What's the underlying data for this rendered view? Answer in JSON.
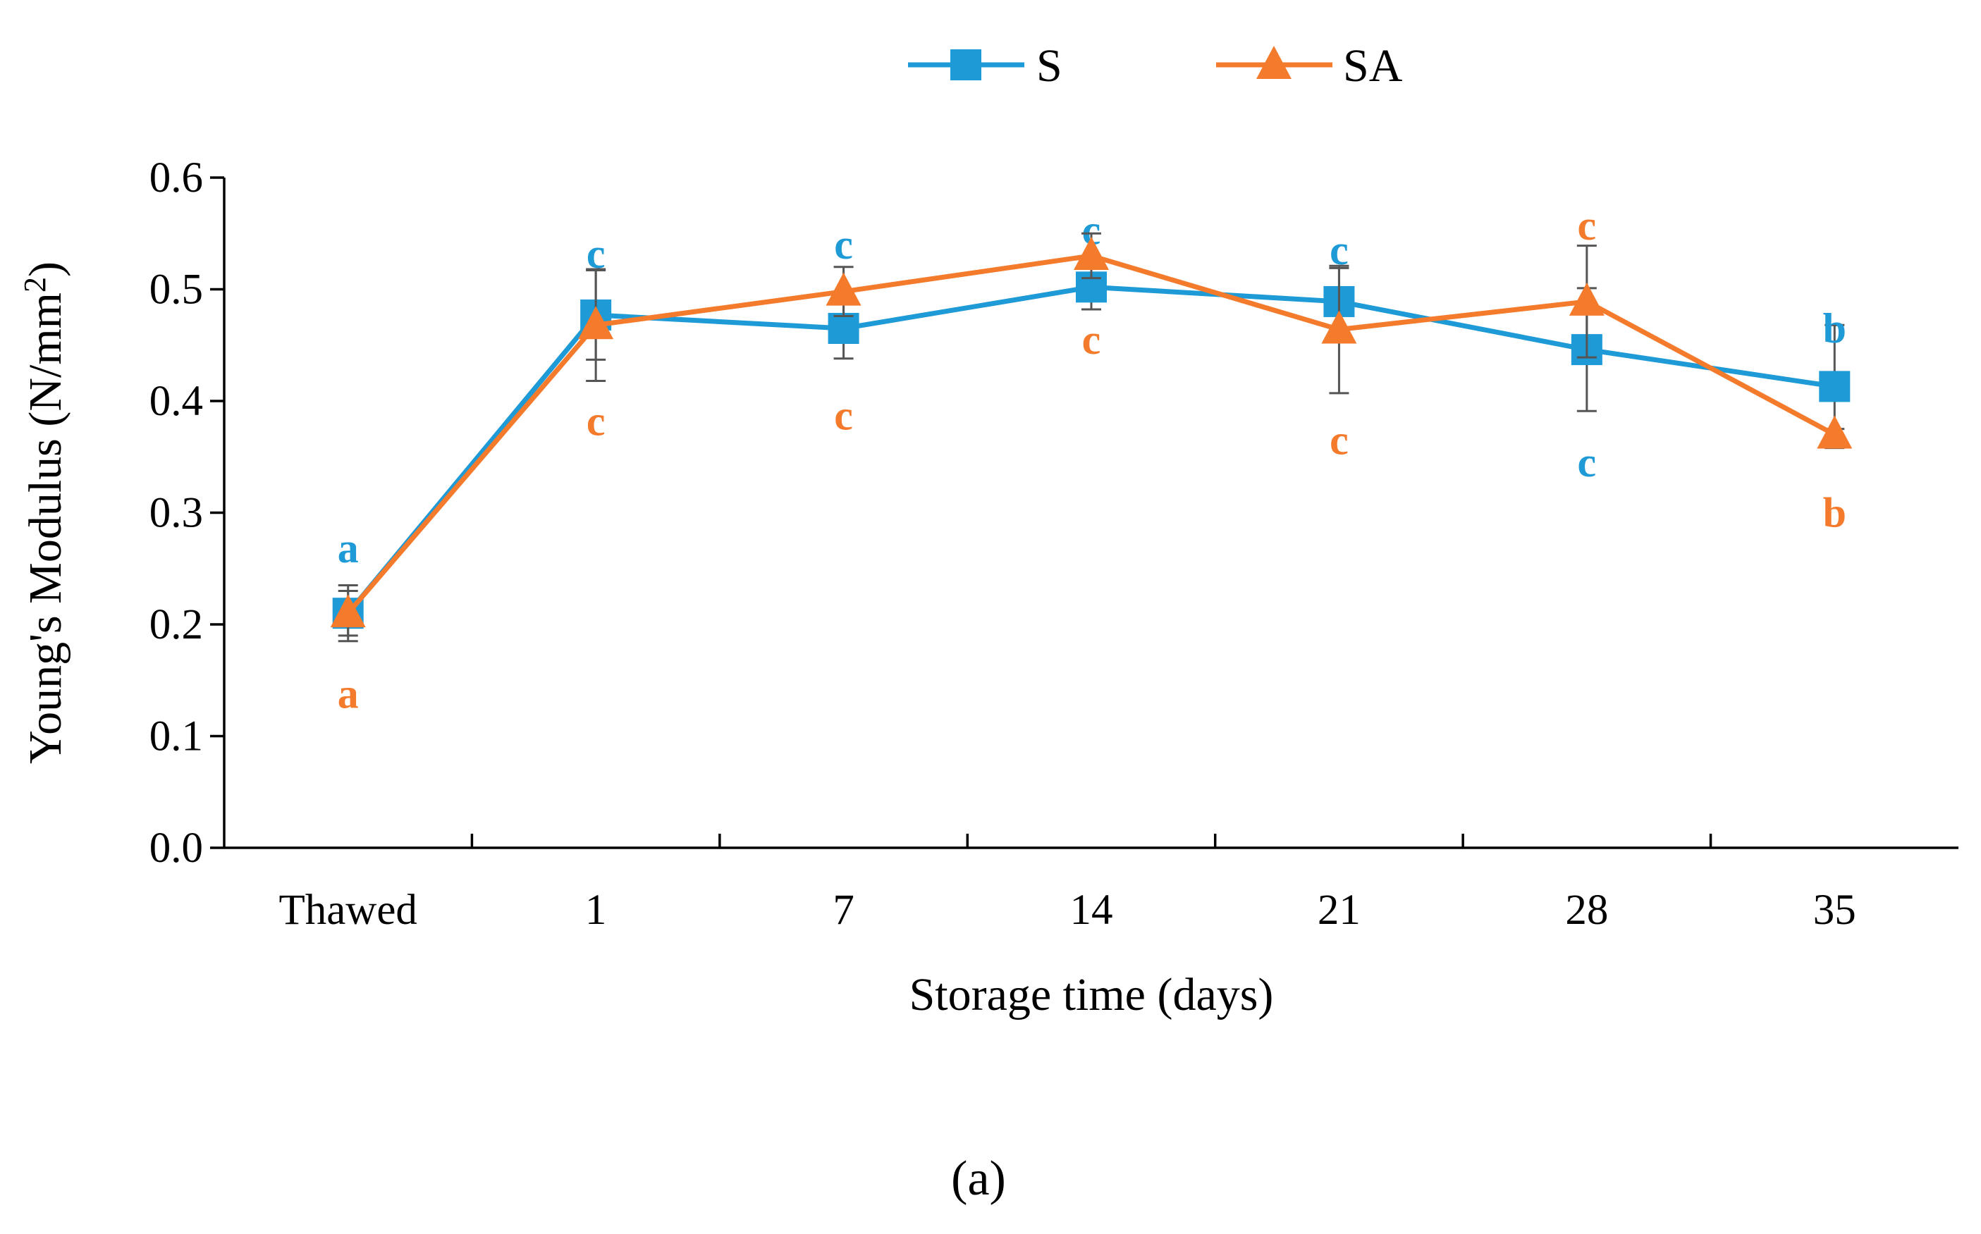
{
  "chart_data": {
    "type": "line",
    "title": "",
    "xlabel": "Storage time (days)",
    "ylabel": "Young's Modulus  (N/mm²)",
    "ylabel_main": "Young's Modulus  (N/mm",
    "ylabel_sup": "2",
    "ylabel_end": ")",
    "categories": [
      "Thawed",
      "1",
      "7",
      "14",
      "21",
      "28",
      "35"
    ],
    "ylim": [
      0,
      0.6
    ],
    "yticks": [
      "0.0",
      "0.1",
      "0.2",
      "0.3",
      "0.4",
      "0.5",
      "0.6"
    ],
    "grid": false,
    "legend_position": "top-center",
    "series": [
      {
        "name": "S",
        "color": "#1E9AD6",
        "marker": "square",
        "values": [
          0.21,
          0.477,
          0.465,
          0.502,
          0.489,
          0.446,
          0.413
        ],
        "errors": [
          0.025,
          0.04,
          0.027,
          0.02,
          0.03,
          0.055,
          0.055
        ],
        "letters": [
          "a",
          "c",
          "c",
          "c",
          "c",
          "c",
          "b"
        ],
        "letter_y": [
          0.268,
          0.532,
          0.54,
          0.553,
          0.535,
          0.345,
          0.465
        ]
      },
      {
        "name": "SA",
        "color": "#F47A2C",
        "marker": "triangle",
        "values": [
          0.21,
          0.468,
          0.498,
          0.53,
          0.464,
          0.489,
          0.37
        ],
        "errors": [
          0.02,
          0.05,
          0.022,
          0.02,
          0.057,
          0.05,
          0.005
        ],
        "letters": [
          "a",
          "c",
          "c",
          "c",
          "c",
          "c",
          "b"
        ],
        "letter_y": [
          0.138,
          0.382,
          0.387,
          0.455,
          0.365,
          0.557,
          0.3
        ]
      }
    ]
  },
  "caption": "(a)"
}
